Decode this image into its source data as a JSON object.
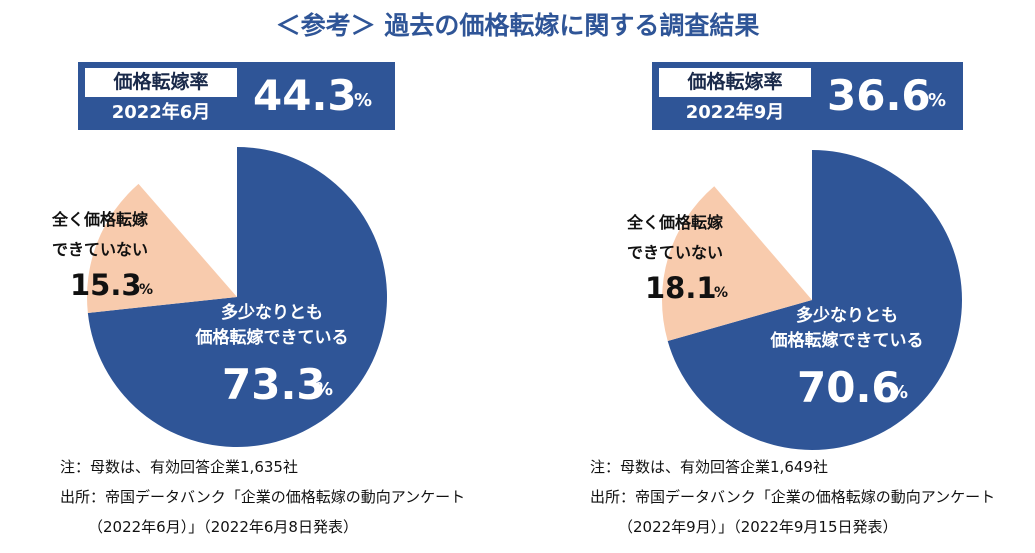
{
  "title": "＜参考＞ 過去の価格転嫁に関する調査結果",
  "chart_data": [
    {
      "type": "pie",
      "header_label": "価格転嫁率",
      "period": "2022年6月",
      "rate": 44.3,
      "unit": "%",
      "categories": [
        "多少なりとも\n価格転嫁できている",
        "全く価格転嫁\nできていない"
      ],
      "values": [
        73.3,
        15.3
      ],
      "colors": [
        "#2f5597",
        "#f8cbad"
      ],
      "notes": [
        "注：母数は、有効回答企業1,635社",
        "出所：帝国データバンク「企業の価格転嫁の動向アンケート",
        "（2022年6月）」（2022年6月8日発表）"
      ]
    },
    {
      "type": "pie",
      "header_label": "価格転嫁率",
      "period": "2022年9月",
      "rate": 36.6,
      "unit": "%",
      "categories": [
        "多少なりとも\n価格転嫁できている",
        "全く価格転嫁\nできていない"
      ],
      "values": [
        70.6,
        18.1
      ],
      "colors": [
        "#2f5597",
        "#f8cbad"
      ],
      "notes": [
        "注：母数は、有効回答企業1,649社",
        "出所：帝国データバンク「企業の価格転嫁の動向アンケート",
        "（2022年9月）」（2022年9月15日発表）"
      ]
    }
  ]
}
